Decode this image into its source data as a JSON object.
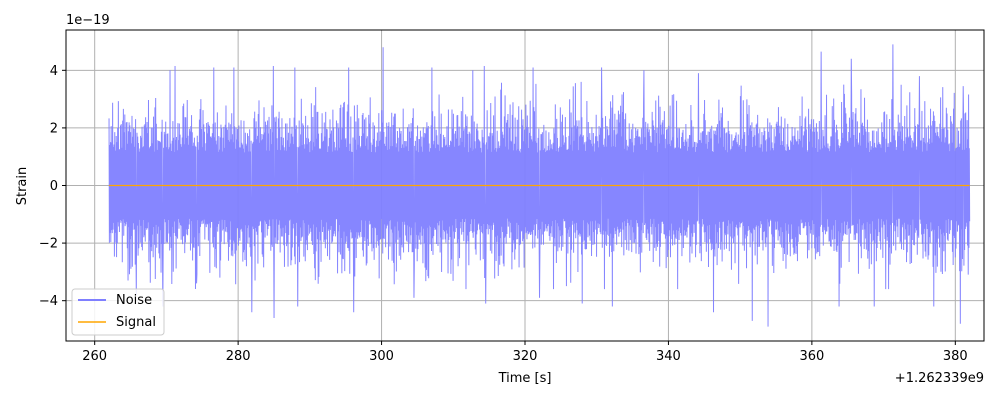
{
  "chart_data": {
    "type": "line",
    "xlabel": "Time [s]",
    "ylabel": "Strain",
    "x_offset_label": "+1.262339e9",
    "y_scale_label": "1e−19",
    "xlim": [
      256,
      384
    ],
    "ylim": [
      -5.4,
      5.4
    ],
    "x_ticks": [
      260,
      280,
      300,
      320,
      340,
      360,
      380
    ],
    "x_tick_labels": [
      "260",
      "280",
      "300",
      "320",
      "340",
      "360",
      "380"
    ],
    "y_ticks": [
      -4,
      -2,
      0,
      2,
      4
    ],
    "y_tick_labels": [
      "−4",
      "−2",
      "0",
      "2",
      "4"
    ],
    "grid": true,
    "legend_position": "lower-left",
    "series": [
      {
        "name": "Noise",
        "color": "#7f7fff",
        "x_range": [
          262,
          382
        ],
        "typical_envelope": [
          -2.2,
          2.2
        ],
        "peak_max": 4.9,
        "peak_min": -4.9,
        "peaks": [
          {
            "x": 270.5,
            "y": 4.0
          },
          {
            "x": 271.2,
            "y": 4.15
          },
          {
            "x": 276.6,
            "y": 4.1
          },
          {
            "x": 279.4,
            "y": 4.1
          },
          {
            "x": 284.9,
            "y": 4.15
          },
          {
            "x": 287.9,
            "y": 4.1
          },
          {
            "x": 295.4,
            "y": 4.1
          },
          {
            "x": 300.2,
            "y": 4.8
          },
          {
            "x": 307.0,
            "y": 4.1
          },
          {
            "x": 312.7,
            "y": 4.0
          },
          {
            "x": 314.3,
            "y": 4.15
          },
          {
            "x": 321.1,
            "y": 4.1
          },
          {
            "x": 330.7,
            "y": 4.1
          },
          {
            "x": 336.6,
            "y": 4.0
          },
          {
            "x": 344.2,
            "y": 3.9
          },
          {
            "x": 361.3,
            "y": 4.65
          },
          {
            "x": 365.5,
            "y": 4.4
          },
          {
            "x": 371.3,
            "y": 4.9
          },
          {
            "x": 375.0,
            "y": 3.8
          },
          {
            "x": 381.1,
            "y": 3.45
          },
          {
            "x": 265.8,
            "y": -3.8
          },
          {
            "x": 269.5,
            "y": -4.2
          },
          {
            "x": 274.2,
            "y": -3.4
          },
          {
            "x": 281.9,
            "y": -4.4
          },
          {
            "x": 285.0,
            "y": -4.6
          },
          {
            "x": 288.3,
            "y": -4.2
          },
          {
            "x": 296.1,
            "y": -4.4
          },
          {
            "x": 304.5,
            "y": -3.9
          },
          {
            "x": 314.5,
            "y": -4.1
          },
          {
            "x": 322.0,
            "y": -3.9
          },
          {
            "x": 328.0,
            "y": -4.1
          },
          {
            "x": 332.2,
            "y": -4.2
          },
          {
            "x": 346.3,
            "y": -4.4
          },
          {
            "x": 351.7,
            "y": -4.7
          },
          {
            "x": 353.9,
            "y": -4.9
          },
          {
            "x": 363.8,
            "y": -4.2
          },
          {
            "x": 368.7,
            "y": -4.2
          },
          {
            "x": 377.0,
            "y": -4.2
          },
          {
            "x": 380.7,
            "y": -4.8
          }
        ]
      },
      {
        "name": "Signal",
        "color": "#ffa500",
        "x": [
          262,
          382
        ],
        "y": [
          0,
          0
        ]
      }
    ]
  }
}
